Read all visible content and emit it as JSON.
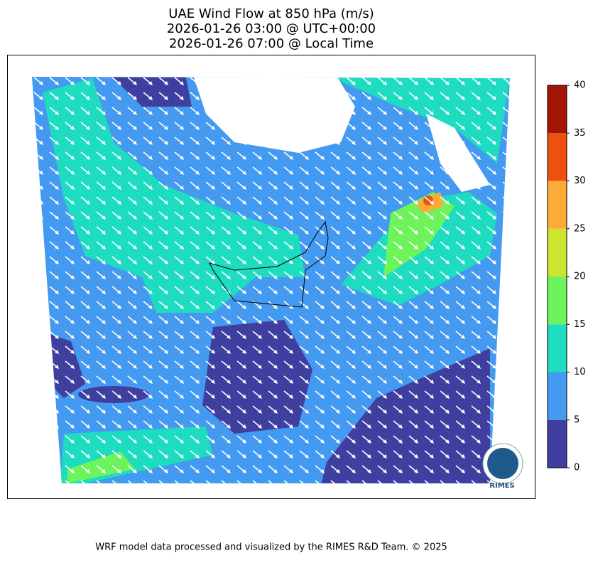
{
  "title": [
    "UAE Wind Flow at 850 hPa (m/s)",
    "2026-01-26 03:00 @ UTC+00:00",
    "2026-01-26 07:00 @ Local Time"
  ],
  "colorbar": {
    "ticks": [
      0,
      5,
      10,
      15,
      20,
      25,
      30,
      35,
      40
    ],
    "colors": [
      "#3f3fa0",
      "#4499f0",
      "#1edcc0",
      "#6cf45a",
      "#cce630",
      "#fdab38",
      "#ee5010",
      "#a31504"
    ]
  },
  "logo": "RIMES",
  "footer": "WRF model data processed and visualized by the RIMES R&D Team. © 2025"
}
